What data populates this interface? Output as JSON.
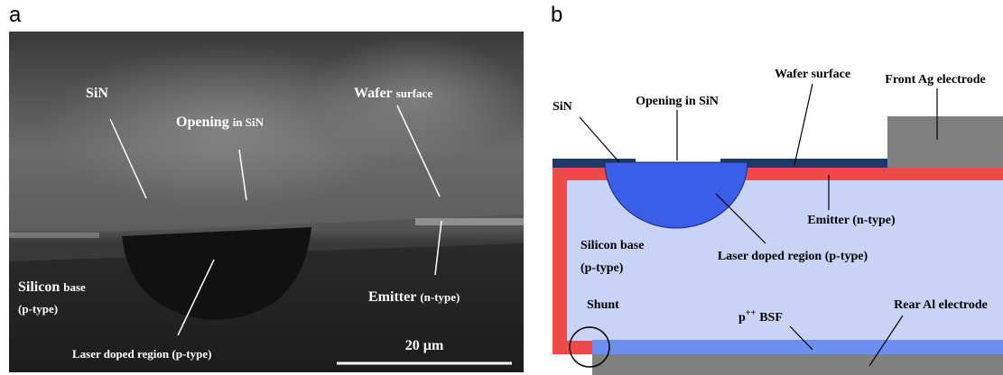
{
  "panel_a": {
    "letter": "a",
    "sin": "SiN",
    "opening": {
      "main": "Opening",
      "rest": "in SiN"
    },
    "wafer_surface": {
      "main": "Wafer",
      "rest": "surface"
    },
    "silicon_base": {
      "main": "Silicon",
      "rest": "base",
      "line2": "(p-type)"
    },
    "emitter": {
      "main": "Emitter",
      "rest": "(n-type)"
    },
    "laser_doped_region": "Laser doped region (p-type)",
    "scale_bar": "20 µm"
  },
  "panel_b": {
    "letter": "b",
    "front_ag_electrode": "Front Ag electrode",
    "wafer_surface": "Wafer surface",
    "sin": "SiN",
    "opening": "Opening in SiN",
    "emitter": "Emitter (n-type)",
    "silicon_base": [
      "Silicon base",
      "(p-type)"
    ],
    "laser_doped_region": "Laser doped region (p-type)",
    "shunt": "Shunt",
    "bsf": {
      "base": "p",
      "sup": "++",
      "rest": "BSF"
    },
    "rear_al_electrode": "Rear Al electrode"
  }
}
